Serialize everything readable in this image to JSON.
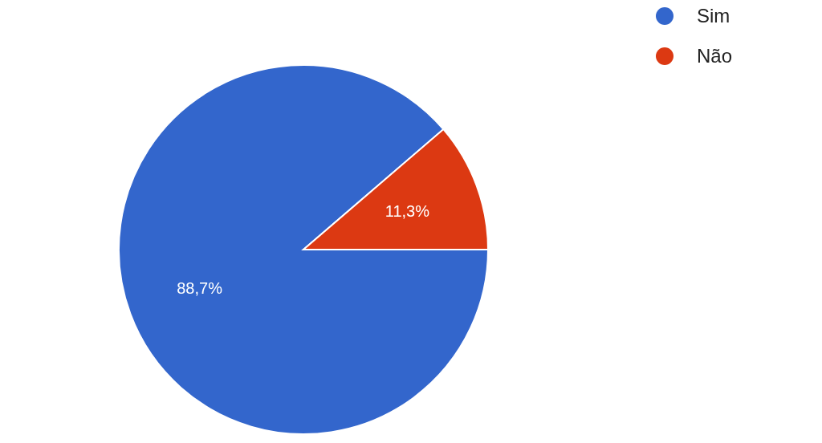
{
  "chart_data": {
    "type": "pie",
    "categories": [
      "Sim",
      "Não"
    ],
    "values": [
      88.7,
      11.3
    ],
    "colors": [
      "#3366cc",
      "#dc3912"
    ],
    "value_labels": [
      "88,7%",
      "11,3%"
    ],
    "legend": "top right"
  }
}
